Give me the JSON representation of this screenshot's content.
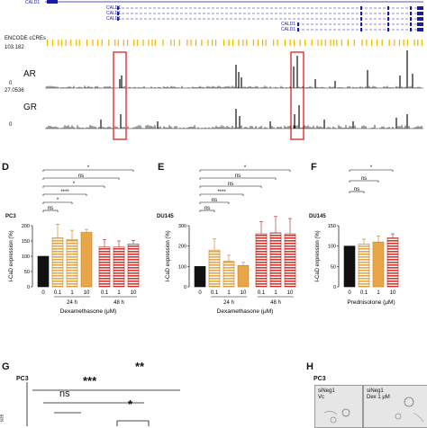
{
  "browser": {
    "gene_rows": [
      "CALD1",
      "CALD1",
      "CALD1",
      "CALD1",
      "CALD1",
      "CALD1"
    ],
    "ccre_label": "ENCODE cCREs",
    "tracks": [
      {
        "name": "AR",
        "max": "103.182",
        "min": "0"
      },
      {
        "name": "GR",
        "max": "27.0536",
        "min": "0"
      }
    ],
    "colors": {
      "gene": "#1a1aa8",
      "ccre": "#f0b400",
      "highlight": "#e02020",
      "signal": "#111111"
    }
  },
  "panels": {
    "D": {
      "letter": "D",
      "cell": "PC3",
      "xtitle": "Dexamethasone (μM)"
    },
    "E": {
      "letter": "E",
      "cell": "DU145",
      "xtitle": "Dexamethasone (μM)"
    },
    "F": {
      "letter": "F",
      "cell": "DU145",
      "xtitle": "Prednisolone (μM)"
    },
    "G": {
      "letter": "G",
      "cell": "PC3",
      "ylabel": "size",
      "sig": [
        "**",
        "***",
        "ns",
        "*"
      ]
    },
    "H": {
      "letter": "H",
      "cell": "PC3",
      "img1": "siNeg1\nVc",
      "img2": "siNeg1\nDex 1 μM"
    }
  },
  "shared": {
    "ylabel": "I-CaD expression (%)",
    "time_24": "24 h",
    "time_48": "48 h"
  },
  "chart_data": [
    {
      "type": "bar",
      "panel": "D",
      "title": "PC3",
      "categories": [
        "0",
        "0.1",
        "1",
        "10",
        "0.1",
        "1",
        "10"
      ],
      "groups": [
        "",
        "24 h",
        "24 h",
        "24 h",
        "48 h",
        "48 h",
        "48 h"
      ],
      "values": [
        100,
        160,
        155,
        178,
        130,
        130,
        140
      ],
      "errors": [
        0,
        45,
        30,
        10,
        25,
        20,
        12
      ],
      "ylim": [
        0,
        200
      ],
      "yticks": [
        0,
        50,
        100,
        150,
        200
      ],
      "xlabel": "Dexamethasone (μM)",
      "ylabel": "I-CaD expression (%)",
      "significance": [
        "*",
        "ns",
        "*",
        "****",
        "*",
        "ns"
      ],
      "bar_styles": [
        "black",
        "orange-striped",
        "orange-striped",
        "orange-solid",
        "red-striped",
        "red-striped",
        "red-striped"
      ]
    },
    {
      "type": "bar",
      "panel": "E",
      "title": "DU145",
      "categories": [
        "0",
        "0.1",
        "1",
        "10",
        "0.1",
        "1",
        "10"
      ],
      "groups": [
        "",
        "24 h",
        "24 h",
        "24 h",
        "48 h",
        "48 h",
        "48 h"
      ],
      "values": [
        100,
        180,
        125,
        105,
        260,
        265,
        260
      ],
      "errors": [
        0,
        55,
        30,
        15,
        60,
        80,
        75
      ],
      "ylim": [
        0,
        300
      ],
      "yticks": [
        0,
        100,
        200,
        300
      ],
      "xlabel": "Dexamethasone (μM)",
      "ylabel": "I-CaD expression (%)",
      "significance": [
        "*",
        "ns",
        "ns",
        "****",
        "ns",
        "ns"
      ],
      "bar_styles": [
        "black",
        "orange-striped",
        "orange-striped",
        "orange-solid",
        "red-striped",
        "red-striped",
        "red-striped"
      ]
    },
    {
      "type": "bar",
      "panel": "F",
      "title": "DU145",
      "categories": [
        "0",
        "0.1",
        "1",
        "10"
      ],
      "values": [
        100,
        105,
        110,
        120
      ],
      "errors": [
        0,
        12,
        15,
        10
      ],
      "ylim": [
        0,
        150
      ],
      "yticks": [
        0,
        50,
        100,
        150
      ],
      "xlabel": "Prednisolone (μM)",
      "ylabel": "I-CaD expression (%)",
      "significance": [
        "*",
        "ns",
        "ns"
      ],
      "bar_styles": [
        "black",
        "orange-striped",
        "orange-solid",
        "red-striped"
      ]
    }
  ]
}
